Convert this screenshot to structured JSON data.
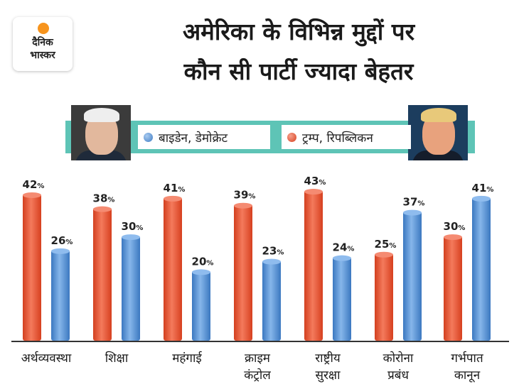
{
  "logo": {
    "line1": "दैनिक",
    "line2": "भास्कर"
  },
  "colors": {
    "trump": "#e85a3b",
    "biden": "#5b95d6",
    "legend_band": "#5ec4b6"
  },
  "chart_data": {
    "type": "bar",
    "title": "अमेरिका के विभिन्न मुद्दों पर कौन सी पार्टी ज्यादा बेहतर",
    "title_lines": [
      "अमेरिका के विभिन्न मुद्दों पर",
      "कौन सी पार्टी ज्यादा बेहतर"
    ],
    "categories": [
      [
        "अर्थव्यवस्था"
      ],
      [
        "शिक्षा"
      ],
      [
        "महंगाई"
      ],
      [
        "क्राइम",
        "कंट्रोल"
      ],
      [
        "राष्ट्रीय",
        "सुरक्षा"
      ],
      [
        "कोरोना",
        "प्रबंध"
      ],
      [
        "गर्भपात",
        "कानून"
      ]
    ],
    "series": [
      {
        "name": "ट्रम्प, रिपब्लिकन",
        "values": [
          42,
          38,
          41,
          39,
          43,
          25,
          30
        ]
      },
      {
        "name": "बाइडेन, डेमोक्रेट",
        "values": [
          26,
          30,
          20,
          23,
          24,
          37,
          41
        ]
      }
    ],
    "unit": "%",
    "ylim": [
      0,
      45
    ],
    "grid": false,
    "legend_position": "top"
  }
}
